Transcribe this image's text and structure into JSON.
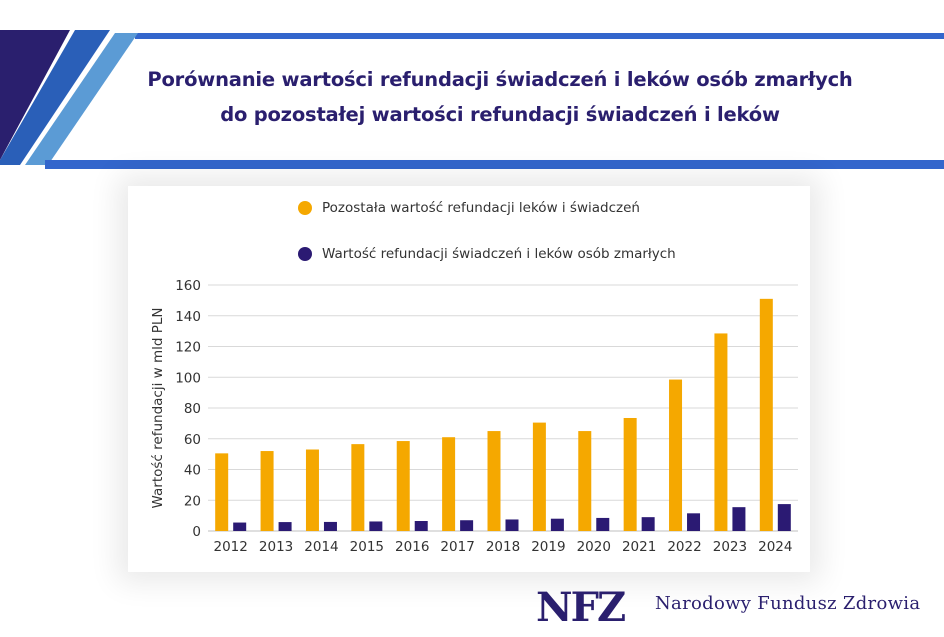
{
  "title": {
    "line1": "Porównanie wartości refundacji świadczeń i leków osób zmarłych",
    "line2": "do pozostałej wartości refundacji świadczeń i leków"
  },
  "colors": {
    "brand_dark": "#2a1f6e",
    "brand_blue": "#3366cc",
    "brand_light": "#5b9bd5",
    "series_other": "#f5a800",
    "series_deceased": "#2b1a73"
  },
  "chart_data": {
    "type": "bar",
    "categories": [
      "2012",
      "2013",
      "2014",
      "2015",
      "2016",
      "2017",
      "2018",
      "2019",
      "2020",
      "2021",
      "2022",
      "2023",
      "2024"
    ],
    "series": [
      {
        "name": "Pozostała wartość refundacji leków i świadczeń",
        "color": "#f5a800",
        "values": [
          50.5,
          52,
          53,
          56.5,
          58.5,
          61,
          65,
          70.5,
          65,
          73.5,
          98.5,
          128.5,
          151
        ]
      },
      {
        "name": "Wartość refundacji świadczeń i leków osób zmarłych",
        "color": "#2b1a73",
        "values": [
          5.5,
          5.8,
          5.9,
          6.2,
          6.5,
          7,
          7.5,
          8,
          8.5,
          9,
          11.5,
          15.5,
          17.5
        ]
      }
    ],
    "yticks": [
      "0",
      "20",
      "40",
      "60",
      "80",
      "100",
      "120",
      "140",
      "160"
    ],
    "ylabel": "Wartość refundacji w mld PLN",
    "xlabel": "",
    "ylim": [
      0,
      160
    ],
    "grid": true,
    "legend_position": "top"
  },
  "footer": {
    "logo_text": "NFZ",
    "org_name": "Narodowy Fundusz Zdrowia"
  }
}
